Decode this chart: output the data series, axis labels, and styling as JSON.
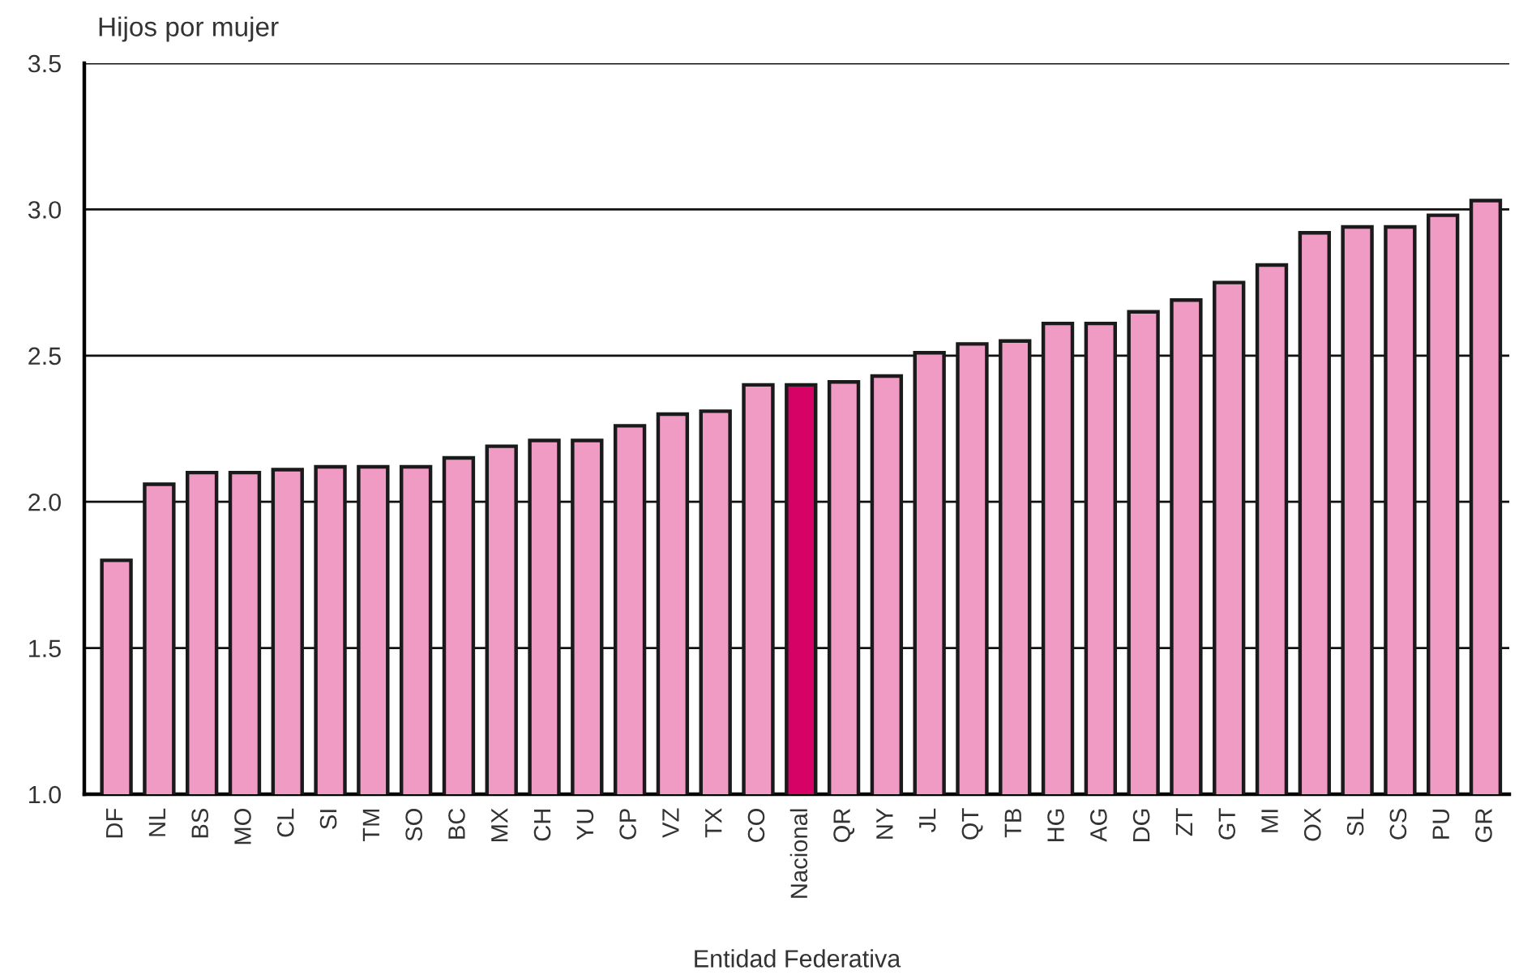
{
  "chart_data": {
    "type": "bar",
    "ylabel": "Hijos por mujer",
    "xlabel": "Entidad Federativa",
    "categories": [
      "DF",
      "NL",
      "BS",
      "MO",
      "CL",
      "SI",
      "TM",
      "SO",
      "BC",
      "MX",
      "CH",
      "YU",
      "CP",
      "VZ",
      "TX",
      "CO",
      "Nacional",
      "QR",
      "NY",
      "JL",
      "QT",
      "TB",
      "HG",
      "AG",
      "DG",
      "ZT",
      "GT",
      "MI",
      "OX",
      "SL",
      "CS",
      "PU",
      "GR"
    ],
    "values": [
      1.8,
      2.06,
      2.1,
      2.1,
      2.11,
      2.12,
      2.12,
      2.12,
      2.15,
      2.19,
      2.21,
      2.21,
      2.26,
      2.3,
      2.31,
      2.4,
      2.4,
      2.41,
      2.43,
      2.51,
      2.54,
      2.55,
      2.61,
      2.61,
      2.65,
      2.69,
      2.75,
      2.81,
      2.92,
      2.94,
      2.94,
      2.98,
      3.03
    ],
    "colors": [
      "#ef9bc4",
      "#ef9bc4",
      "#ef9bc4",
      "#ef9bc4",
      "#ef9bc4",
      "#ef9bc4",
      "#ef9bc4",
      "#ef9bc4",
      "#ef9bc4",
      "#ef9bc4",
      "#ef9bc4",
      "#ef9bc4",
      "#ef9bc4",
      "#ef9bc4",
      "#ef9bc4",
      "#ef9bc4",
      "#d60265",
      "#ef9bc4",
      "#ef9bc4",
      "#ef9bc4",
      "#ef9bc4",
      "#ef9bc4",
      "#ef9bc4",
      "#ef9bc4",
      "#ef9bc4",
      "#ef9bc4",
      "#ef9bc4",
      "#ef9bc4",
      "#ef9bc4",
      "#ef9bc4",
      "#ef9bc4",
      "#ef9bc4",
      "#ef9bc4"
    ],
    "ylim": [
      1.0,
      3.5
    ],
    "yticks": [
      {
        "value": 1.0,
        "label": "1.0"
      },
      {
        "value": 1.5,
        "label": "1.5"
      },
      {
        "value": 2.0,
        "label": "2.0"
      },
      {
        "value": 2.5,
        "label": "2.5"
      },
      {
        "value": 3.0,
        "label": "3.0"
      },
      {
        "value": 3.5,
        "label": "3.5"
      }
    ],
    "grid": "y",
    "legend": false
  }
}
